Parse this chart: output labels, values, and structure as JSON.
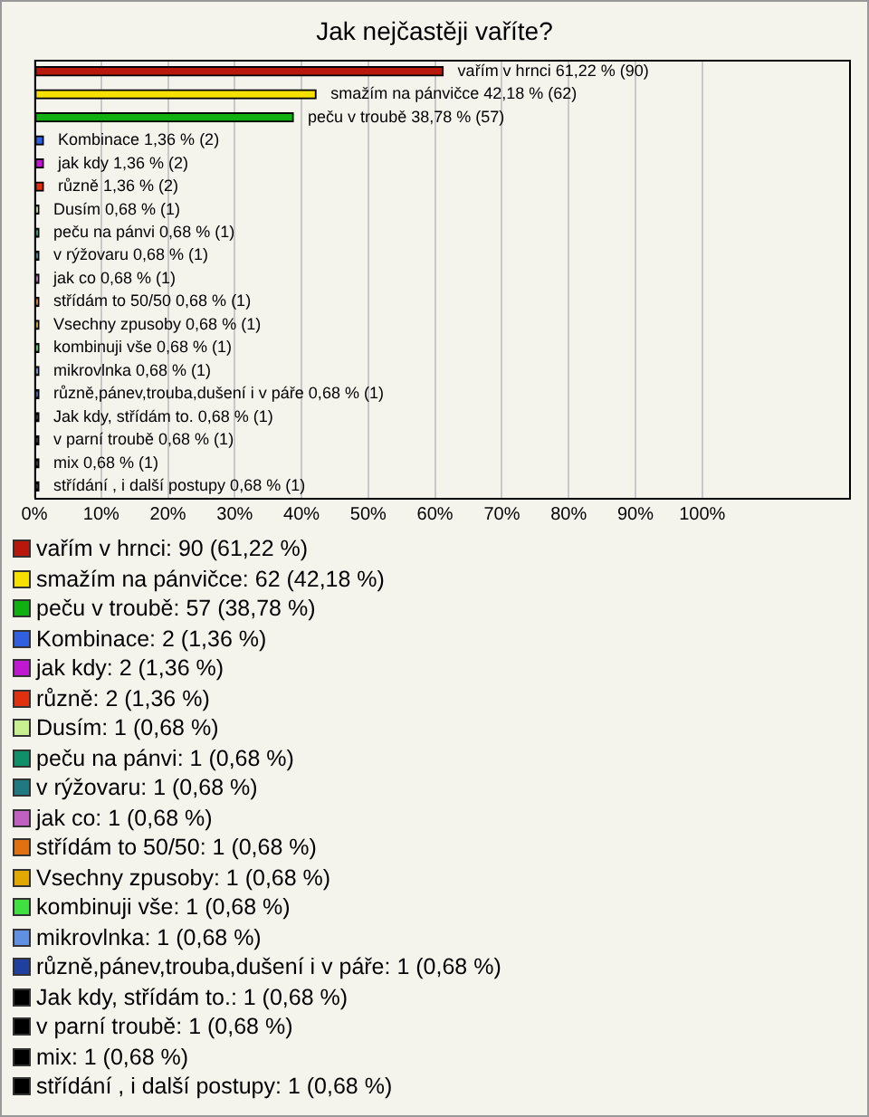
{
  "chart_data": {
    "type": "bar",
    "title": "Jak nejčastěji vaříte?",
    "orientation": "horizontal",
    "stacked": true,
    "categories": [
      null,
      null,
      null,
      null,
      null,
      null,
      null,
      null,
      null,
      null,
      null,
      null,
      null,
      null,
      null,
      null,
      null,
      null,
      null
    ],
    "series": [
      {
        "name": "vařím v hrnci: 90 (61,22 %)",
        "color": "#b8180c",
        "values": [
          61.22,
          null,
          null,
          null,
          null,
          null,
          null,
          null,
          null,
          null,
          null,
          null,
          null,
          null,
          null,
          null,
          null,
          null,
          null
        ],
        "value_labels": [
          "vařím v hrnci 61,22 % (90)",
          null,
          null,
          null,
          null,
          null,
          null,
          null,
          null,
          null,
          null,
          null,
          null,
          null,
          null,
          null,
          null,
          null,
          null
        ]
      },
      {
        "name": "smažím na pánvičce: 62 (42,18 %)",
        "color": "#f5e000",
        "values": [
          null,
          42.18,
          null,
          null,
          null,
          null,
          null,
          null,
          null,
          null,
          null,
          null,
          null,
          null,
          null,
          null,
          null,
          null,
          null
        ],
        "value_labels": [
          null,
          "smažím na pánvičce 42,18 % (62)",
          null,
          null,
          null,
          null,
          null,
          null,
          null,
          null,
          null,
          null,
          null,
          null,
          null,
          null,
          null,
          null,
          null
        ]
      },
      {
        "name": "peču v troubě: 57 (38,78 %)",
        "color": "#10b010",
        "values": [
          null,
          null,
          38.78,
          null,
          null,
          null,
          null,
          null,
          null,
          null,
          null,
          null,
          null,
          null,
          null,
          null,
          null,
          null,
          null
        ],
        "value_labels": [
          null,
          null,
          "peču v troubě 38,78 % (57)",
          null,
          null,
          null,
          null,
          null,
          null,
          null,
          null,
          null,
          null,
          null,
          null,
          null,
          null,
          null,
          null
        ]
      },
      {
        "name": "Kombinace: 2 (1,36 %)",
        "color": "#3060e0",
        "values": [
          null,
          null,
          null,
          1.36,
          null,
          null,
          null,
          null,
          null,
          null,
          null,
          null,
          null,
          null,
          null,
          null,
          null,
          null,
          null
        ],
        "value_labels": [
          null,
          null,
          null,
          "Kombinace 1,36 % (2)",
          null,
          null,
          null,
          null,
          null,
          null,
          null,
          null,
          null,
          null,
          null,
          null,
          null,
          null,
          null
        ]
      },
      {
        "name": "jak kdy: 2 (1,36 %)",
        "color": "#c018d0",
        "values": [
          null,
          null,
          null,
          null,
          1.36,
          null,
          null,
          null,
          null,
          null,
          null,
          null,
          null,
          null,
          null,
          null,
          null,
          null,
          null
        ],
        "value_labels": [
          null,
          null,
          null,
          null,
          "jak kdy 1,36 % (2)",
          null,
          null,
          null,
          null,
          null,
          null,
          null,
          null,
          null,
          null,
          null,
          null,
          null,
          null
        ]
      },
      {
        "name": "různě: 2 (1,36 %)",
        "color": "#e03010",
        "values": [
          null,
          null,
          null,
          null,
          null,
          1.36,
          null,
          null,
          null,
          null,
          null,
          null,
          null,
          null,
          null,
          null,
          null,
          null,
          null
        ],
        "value_labels": [
          null,
          null,
          null,
          null,
          null,
          "různě 1,36 % (2)",
          null,
          null,
          null,
          null,
          null,
          null,
          null,
          null,
          null,
          null,
          null,
          null,
          null
        ]
      },
      {
        "name": "Dusím: 1 (0,68 %)",
        "color": "#c8f090",
        "values": [
          null,
          null,
          null,
          null,
          null,
          null,
          0.68,
          null,
          null,
          null,
          null,
          null,
          null,
          null,
          null,
          null,
          null,
          null,
          null
        ],
        "value_labels": [
          null,
          null,
          null,
          null,
          null,
          null,
          "Dusím 0,68 % (1)",
          null,
          null,
          null,
          null,
          null,
          null,
          null,
          null,
          null,
          null,
          null,
          null
        ]
      },
      {
        "name": "peču na pánvi: 1 (0,68 %)",
        "color": "#109068",
        "values": [
          null,
          null,
          null,
          null,
          null,
          null,
          null,
          0.68,
          null,
          null,
          null,
          null,
          null,
          null,
          null,
          null,
          null,
          null,
          null
        ],
        "value_labels": [
          null,
          null,
          null,
          null,
          null,
          null,
          null,
          "peču na pánvi 0,68 % (1)",
          null,
          null,
          null,
          null,
          null,
          null,
          null,
          null,
          null,
          null,
          null
        ]
      },
      {
        "name": "v rýžovaru: 1 (0,68 %)",
        "color": "#207880",
        "values": [
          null,
          null,
          null,
          null,
          null,
          null,
          null,
          null,
          0.68,
          null,
          null,
          null,
          null,
          null,
          null,
          null,
          null,
          null,
          null
        ],
        "value_labels": [
          null,
          null,
          null,
          null,
          null,
          null,
          null,
          null,
          "v rýžovaru 0,68 % (1)",
          null,
          null,
          null,
          null,
          null,
          null,
          null,
          null,
          null,
          null
        ]
      },
      {
        "name": "jak co: 1 (0,68 %)",
        "color": "#c060c0",
        "values": [
          null,
          null,
          null,
          null,
          null,
          null,
          null,
          null,
          null,
          0.68,
          null,
          null,
          null,
          null,
          null,
          null,
          null,
          null,
          null
        ],
        "value_labels": [
          null,
          null,
          null,
          null,
          null,
          null,
          null,
          null,
          null,
          "jak co 0,68 % (1)",
          null,
          null,
          null,
          null,
          null,
          null,
          null,
          null,
          null
        ]
      },
      {
        "name": "střídám to 50/50: 1 (0,68 %)",
        "color": "#e07010",
        "values": [
          null,
          null,
          null,
          null,
          null,
          null,
          null,
          null,
          null,
          null,
          0.68,
          null,
          null,
          null,
          null,
          null,
          null,
          null,
          null
        ],
        "value_labels": [
          null,
          null,
          null,
          null,
          null,
          null,
          null,
          null,
          null,
          null,
          "střídám to 50/50 0,68 % (1)",
          null,
          null,
          null,
          null,
          null,
          null,
          null,
          null
        ]
      },
      {
        "name": "Vsechny zpusoby: 1 (0,68 %)",
        "color": "#e0a800",
        "values": [
          null,
          null,
          null,
          null,
          null,
          null,
          null,
          null,
          null,
          null,
          null,
          0.68,
          null,
          null,
          null,
          null,
          null,
          null,
          null
        ],
        "value_labels": [
          null,
          null,
          null,
          null,
          null,
          null,
          null,
          null,
          null,
          null,
          null,
          "Vsechny zpusoby 0,68 % (1)",
          null,
          null,
          null,
          null,
          null,
          null,
          null
        ]
      },
      {
        "name": "kombinuji vše: 1 (0,68 %)",
        "color": "#40e040",
        "values": [
          null,
          null,
          null,
          null,
          null,
          null,
          null,
          null,
          null,
          null,
          null,
          null,
          0.68,
          null,
          null,
          null,
          null,
          null,
          null
        ],
        "value_labels": [
          null,
          null,
          null,
          null,
          null,
          null,
          null,
          null,
          null,
          null,
          null,
          null,
          "kombinuji vše 0,68 % (1)",
          null,
          null,
          null,
          null,
          null,
          null
        ]
      },
      {
        "name": "mikrovlnka: 1 (0,68 %)",
        "color": "#6090e0",
        "values": [
          null,
          null,
          null,
          null,
          null,
          null,
          null,
          null,
          null,
          null,
          null,
          null,
          null,
          0.68,
          null,
          null,
          null,
          null,
          null
        ],
        "value_labels": [
          null,
          null,
          null,
          null,
          null,
          null,
          null,
          null,
          null,
          null,
          null,
          null,
          null,
          "mikrovlnka 0,68 % (1)",
          null,
          null,
          null,
          null,
          null
        ]
      },
      {
        "name": "různě,pánev,trouba,dušení i v páře: 1 (0,68 %)",
        "color": "#2040a0",
        "values": [
          null,
          null,
          null,
          null,
          null,
          null,
          null,
          null,
          null,
          null,
          null,
          null,
          null,
          null,
          0.68,
          null,
          null,
          null,
          null
        ],
        "value_labels": [
          null,
          null,
          null,
          null,
          null,
          null,
          null,
          null,
          null,
          null,
          null,
          null,
          null,
          null,
          "různě,pánev,trouba,dušení i v páře 0,68 % (1)",
          null,
          null,
          null,
          null
        ]
      },
      {
        "name": "Jak kdy, střídám to.: 1 (0,68 %)",
        "color": "#000000",
        "values": [
          null,
          null,
          null,
          null,
          null,
          null,
          null,
          null,
          null,
          null,
          null,
          null,
          null,
          null,
          null,
          0.68,
          null,
          null,
          null
        ],
        "value_labels": [
          null,
          null,
          null,
          null,
          null,
          null,
          null,
          null,
          null,
          null,
          null,
          null,
          null,
          null,
          null,
          "Jak kdy, střídám to. 0,68 % (1)",
          null,
          null,
          null
        ]
      },
      {
        "name": "v parní troubě: 1 (0,68 %)",
        "color": "#000000",
        "values": [
          null,
          null,
          null,
          null,
          null,
          null,
          null,
          null,
          null,
          null,
          null,
          null,
          null,
          null,
          null,
          null,
          0.68,
          null,
          null
        ],
        "value_labels": [
          null,
          null,
          null,
          null,
          null,
          null,
          null,
          null,
          null,
          null,
          null,
          null,
          null,
          null,
          null,
          null,
          "v parní troubě 0,68 % (1)",
          null,
          null
        ]
      },
      {
        "name": "mix: 1 (0,68 %)",
        "color": "#000000",
        "values": [
          null,
          null,
          null,
          null,
          null,
          null,
          null,
          null,
          null,
          null,
          null,
          null,
          null,
          null,
          null,
          null,
          null,
          0.68,
          null
        ],
        "value_labels": [
          null,
          null,
          null,
          null,
          null,
          null,
          null,
          null,
          null,
          null,
          null,
          null,
          null,
          null,
          null,
          null,
          null,
          "mix 0,68 % (1)",
          null
        ]
      },
      {
        "name": "střídání , i další postupy: 1 (0,68 %)",
        "color": "#000000",
        "values": [
          null,
          null,
          null,
          null,
          null,
          null,
          null,
          null,
          null,
          null,
          null,
          null,
          null,
          null,
          null,
          null,
          null,
          null,
          0.68
        ],
        "value_labels": [
          null,
          null,
          null,
          null,
          null,
          null,
          null,
          null,
          null,
          null,
          null,
          null,
          null,
          null,
          null,
          null,
          null,
          null,
          "střídání , i další postupy 0,68 % (1)"
        ]
      }
    ],
    "xlim": [
      0,
      122
    ],
    "xticks": [
      {
        "value": 0,
        "label": "0%"
      },
      {
        "value": 10,
        "label": "10%"
      },
      {
        "value": 20,
        "label": "20%"
      },
      {
        "value": 30,
        "label": "30%"
      },
      {
        "value": 40,
        "label": "40%"
      },
      {
        "value": 50,
        "label": "50%"
      },
      {
        "value": 60,
        "label": "60%"
      },
      {
        "value": 70,
        "label": "70%"
      },
      {
        "value": 80,
        "label": "80%"
      },
      {
        "value": 90,
        "label": "90%"
      },
      {
        "value": 100,
        "label": "100%"
      }
    ],
    "grid": "x",
    "legend": "bottom"
  }
}
